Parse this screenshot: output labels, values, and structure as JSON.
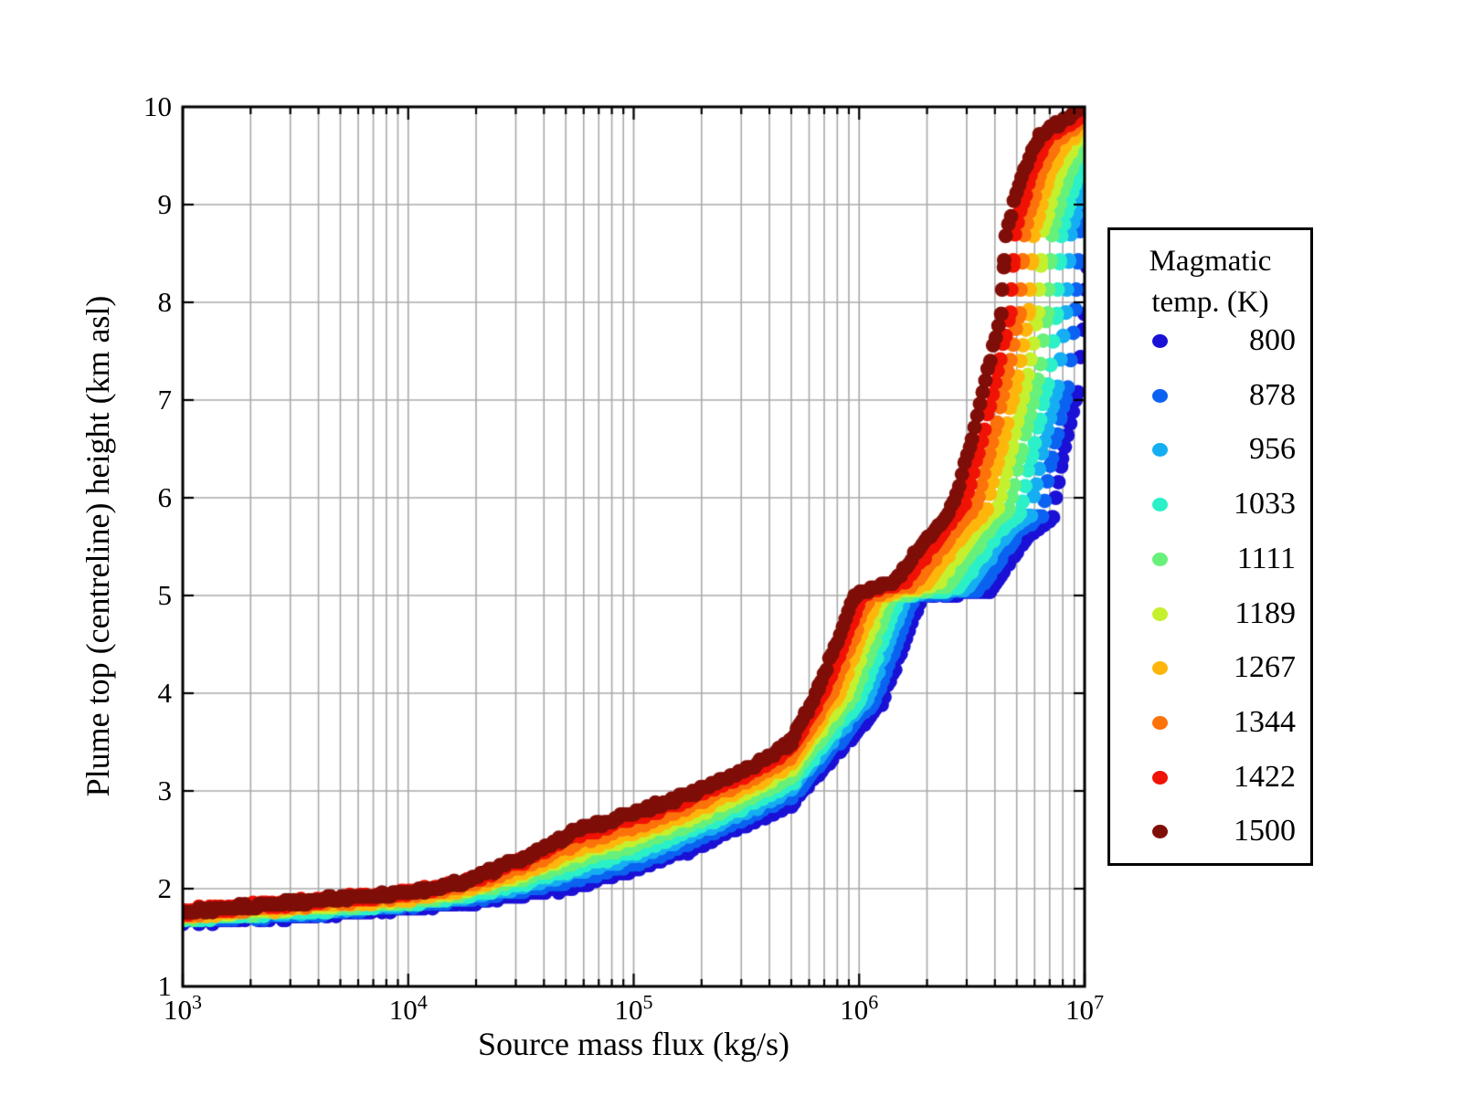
{
  "figure": {
    "background": "#ffffff",
    "frame_color": "#000000"
  },
  "chart_data": {
    "type": "scatter",
    "title": "",
    "xlabel": "Source mass flux (kg/s)",
    "ylabel": "Plume top (centreline) height (km asl)",
    "x_scale": "log",
    "x_range_log10": [
      3,
      7
    ],
    "ylim": [
      1,
      10
    ],
    "x_tick_base": "10",
    "x_tick_exponents": [
      3,
      4,
      5,
      6,
      7
    ],
    "y_ticks": [
      1,
      2,
      3,
      4,
      5,
      6,
      7,
      8,
      9,
      10
    ],
    "grid": {
      "color": "#aaaaaa",
      "minor_vertical": true,
      "major_horizontal": true
    },
    "marker_radius_px": 8,
    "legend": {
      "title_lines": [
        "Magmatic",
        "temp. (K)"
      ],
      "position": "right"
    },
    "series": [
      {
        "name": "800",
        "temp": 800,
        "color": "#1a10d6",
        "points": [
          [
            3.0,
            1.66
          ],
          [
            3.5,
            1.72
          ],
          [
            4.0,
            1.8
          ],
          [
            4.25,
            1.86
          ],
          [
            4.5,
            1.93
          ],
          [
            4.75,
            2.03
          ],
          [
            5.0,
            2.19
          ],
          [
            5.25,
            2.4
          ],
          [
            5.5,
            2.66
          ],
          [
            5.7,
            2.87
          ],
          [
            6.1,
            3.9
          ],
          [
            6.28,
            5.0
          ],
          [
            6.58,
            5.05
          ],
          [
            6.76,
            5.65
          ],
          [
            6.86,
            5.8
          ],
          [
            6.9,
            6.4
          ],
          [
            6.97,
            7.1
          ],
          [
            7.0,
            7.9
          ],
          [
            7.02,
            8.7
          ],
          [
            7.08,
            9.2
          ],
          [
            7.15,
            9.55
          ],
          [
            7.3,
            9.9
          ]
        ],
        "gap_points": [
          [
            7.004,
            8.13
          ],
          [
            7.013,
            8.43
          ]
        ]
      },
      {
        "name": "878",
        "temp": 878,
        "color": "#0b62f0",
        "points": [
          [
            3.0,
            1.671
          ],
          [
            3.5,
            1.736
          ],
          [
            4.0,
            1.818
          ],
          [
            4.25,
            1.883
          ],
          [
            4.5,
            1.971
          ],
          [
            4.75,
            2.093
          ],
          [
            5.0,
            2.254
          ],
          [
            5.25,
            2.463
          ],
          [
            5.5,
            2.722
          ],
          [
            5.7,
            2.94
          ],
          [
            6.069,
            3.917
          ],
          [
            6.247,
            5.0
          ],
          [
            6.533,
            5.061
          ],
          [
            6.716,
            5.661
          ],
          [
            6.811,
            5.817
          ],
          [
            6.856,
            6.422
          ],
          [
            6.926,
            7.122
          ],
          [
            6.959,
            7.9
          ],
          [
            6.979,
            8.7
          ],
          [
            7.04,
            9.211
          ],
          [
            7.111,
            9.567
          ],
          [
            7.267,
            9.911
          ]
        ],
        "gap_points": [
          [
            6.963,
            8.13
          ],
          [
            6.972,
            8.43
          ]
        ]
      },
      {
        "name": "956",
        "temp": 956,
        "color": "#16aef2",
        "points": [
          [
            3.0,
            1.682
          ],
          [
            3.5,
            1.751
          ],
          [
            4.0,
            1.836
          ],
          [
            4.25,
            1.907
          ],
          [
            4.5,
            2.012
          ],
          [
            4.75,
            2.157
          ],
          [
            5.0,
            2.319
          ],
          [
            5.25,
            2.527
          ],
          [
            5.5,
            2.784
          ],
          [
            5.7,
            3.01
          ],
          [
            6.038,
            3.933
          ],
          [
            6.213,
            5.0
          ],
          [
            6.487,
            5.072
          ],
          [
            6.671,
            5.672
          ],
          [
            6.762,
            5.833
          ],
          [
            6.811,
            6.444
          ],
          [
            6.881,
            7.144
          ],
          [
            6.918,
            7.9
          ],
          [
            6.938,
            8.7
          ],
          [
            7.0,
            9.222
          ],
          [
            7.072,
            9.583
          ],
          [
            7.233,
            9.922
          ]
        ],
        "gap_points": [
          [
            6.922,
            8.13
          ],
          [
            6.931,
            8.43
          ]
        ]
      },
      {
        "name": "1033",
        "temp": 1033,
        "color": "#2bf0c8",
        "points": [
          [
            3.0,
            1.693
          ],
          [
            3.5,
            1.767
          ],
          [
            4.0,
            1.853
          ],
          [
            4.25,
            1.93
          ],
          [
            4.5,
            2.053
          ],
          [
            4.75,
            2.22
          ],
          [
            5.0,
            2.383
          ],
          [
            5.25,
            2.59
          ],
          [
            5.5,
            2.847
          ],
          [
            5.7,
            3.08
          ],
          [
            6.007,
            3.95
          ],
          [
            6.18,
            5.0
          ],
          [
            6.44,
            5.083
          ],
          [
            6.627,
            5.683
          ],
          [
            6.713,
            5.85
          ],
          [
            6.767,
            6.467
          ],
          [
            6.837,
            7.167
          ],
          [
            6.877,
            7.9
          ],
          [
            6.897,
            8.7
          ],
          [
            6.96,
            9.233
          ],
          [
            7.033,
            9.6
          ],
          [
            7.2,
            9.933
          ]
        ],
        "gap_points": [
          [
            6.881,
            8.13
          ],
          [
            6.89,
            8.43
          ]
        ]
      },
      {
        "name": "1111",
        "temp": 1111,
        "color": "#67f07a",
        "points": [
          [
            3.0,
            1.704
          ],
          [
            3.5,
            1.782
          ],
          [
            4.0,
            1.871
          ],
          [
            4.25,
            1.953
          ],
          [
            4.5,
            2.094
          ],
          [
            4.75,
            2.283
          ],
          [
            5.0,
            2.448
          ],
          [
            5.25,
            2.653
          ],
          [
            5.5,
            2.909
          ],
          [
            5.7,
            3.15
          ],
          [
            5.976,
            3.967
          ],
          [
            6.147,
            5.0
          ],
          [
            6.393,
            5.094
          ],
          [
            6.582,
            5.694
          ],
          [
            6.664,
            5.867
          ],
          [
            6.722,
            6.489
          ],
          [
            6.792,
            7.189
          ],
          [
            6.836,
            7.9
          ],
          [
            6.856,
            8.7
          ],
          [
            6.92,
            9.244
          ],
          [
            6.994,
            9.617
          ],
          [
            7.167,
            9.944
          ]
        ],
        "gap_points": [
          [
            6.84,
            8.13
          ],
          [
            6.849,
            8.43
          ]
        ]
      },
      {
        "name": "1189",
        "temp": 1189,
        "color": "#c5f02e",
        "points": [
          [
            3.0,
            1.716
          ],
          [
            3.5,
            1.798
          ],
          [
            4.0,
            1.889
          ],
          [
            4.25,
            1.977
          ],
          [
            4.5,
            2.136
          ],
          [
            4.75,
            2.347
          ],
          [
            5.0,
            2.512
          ],
          [
            5.25,
            2.717
          ],
          [
            5.5,
            2.971
          ],
          [
            5.7,
            3.22
          ],
          [
            5.944,
            3.983
          ],
          [
            6.113,
            5.0
          ],
          [
            6.347,
            5.106
          ],
          [
            6.538,
            5.706
          ],
          [
            6.616,
            5.883
          ],
          [
            6.678,
            6.511
          ],
          [
            6.748,
            7.211
          ],
          [
            6.794,
            7.9
          ],
          [
            6.814,
            8.7
          ],
          [
            6.88,
            9.256
          ],
          [
            6.956,
            9.633
          ],
          [
            7.133,
            9.956
          ]
        ],
        "gap_points": [
          [
            6.798,
            8.13
          ],
          [
            6.807,
            8.43
          ]
        ]
      },
      {
        "name": "1267",
        "temp": 1267,
        "color": "#ffb60c",
        "points": [
          [
            3.0,
            1.727
          ],
          [
            3.5,
            1.813
          ],
          [
            4.0,
            1.907
          ],
          [
            4.25,
            2.0
          ],
          [
            4.5,
            2.177
          ],
          [
            4.75,
            2.41
          ],
          [
            5.0,
            2.577
          ],
          [
            5.25,
            2.78
          ],
          [
            5.5,
            3.033
          ],
          [
            5.7,
            3.29
          ],
          [
            5.913,
            4.0
          ],
          [
            6.08,
            5.0
          ],
          [
            6.3,
            5.117
          ],
          [
            6.493,
            5.717
          ],
          [
            6.567,
            5.9
          ],
          [
            6.633,
            6.533
          ],
          [
            6.703,
            7.233
          ],
          [
            6.753,
            7.9
          ],
          [
            6.773,
            8.7
          ],
          [
            6.84,
            9.267
          ],
          [
            6.917,
            9.65
          ],
          [
            7.1,
            9.967
          ]
        ],
        "gap_points": [
          [
            6.757,
            8.13
          ],
          [
            6.766,
            8.43
          ]
        ]
      },
      {
        "name": "1344",
        "temp": 1344,
        "color": "#fc720b",
        "points": [
          [
            3.0,
            1.738
          ],
          [
            3.5,
            1.829
          ],
          [
            4.0,
            1.924
          ],
          [
            4.25,
            2.023
          ],
          [
            4.5,
            2.218
          ],
          [
            4.75,
            2.473
          ],
          [
            5.0,
            2.641
          ],
          [
            5.25,
            2.843
          ],
          [
            5.5,
            3.096
          ],
          [
            5.7,
            3.36
          ],
          [
            5.882,
            4.017
          ],
          [
            6.047,
            5.0
          ],
          [
            6.253,
            5.128
          ],
          [
            6.449,
            5.728
          ],
          [
            6.518,
            5.917
          ],
          [
            6.589,
            6.556
          ],
          [
            6.659,
            7.256
          ],
          [
            6.712,
            7.9
          ],
          [
            6.732,
            8.7
          ],
          [
            6.8,
            9.278
          ],
          [
            6.878,
            9.667
          ],
          [
            7.067,
            9.978
          ]
        ],
        "gap_points": [
          [
            6.716,
            8.13
          ],
          [
            6.725,
            8.43
          ]
        ]
      },
      {
        "name": "1422",
        "temp": 1422,
        "color": "#f01205",
        "points": [
          [
            3.0,
            1.749
          ],
          [
            3.5,
            1.844
          ],
          [
            4.0,
            1.942
          ],
          [
            4.25,
            2.047
          ],
          [
            4.5,
            2.259
          ],
          [
            4.75,
            2.537
          ],
          [
            5.0,
            2.706
          ],
          [
            5.25,
            2.907
          ],
          [
            5.5,
            3.158
          ],
          [
            5.7,
            3.43
          ],
          [
            5.851,
            4.033
          ],
          [
            6.013,
            5.0
          ],
          [
            6.207,
            5.139
          ],
          [
            6.404,
            5.739
          ],
          [
            6.469,
            5.933
          ],
          [
            6.544,
            6.578
          ],
          [
            6.614,
            7.278
          ],
          [
            6.671,
            7.9
          ],
          [
            6.691,
            8.7
          ],
          [
            6.76,
            9.289
          ],
          [
            6.839,
            9.683
          ],
          [
            7.033,
            9.989
          ]
        ],
        "gap_points": [
          [
            6.675,
            8.13
          ],
          [
            6.684,
            8.43
          ]
        ]
      },
      {
        "name": "1500",
        "temp": 1500,
        "color": "#7f0e08",
        "points": [
          [
            3.0,
            1.76
          ],
          [
            3.5,
            1.86
          ],
          [
            4.0,
            1.96
          ],
          [
            4.25,
            2.07
          ],
          [
            4.5,
            2.3
          ],
          [
            4.75,
            2.6
          ],
          [
            5.0,
            2.77
          ],
          [
            5.25,
            2.97
          ],
          [
            5.5,
            3.22
          ],
          [
            5.7,
            3.5
          ],
          [
            5.82,
            4.05
          ],
          [
            5.98,
            5.0
          ],
          [
            6.16,
            5.15
          ],
          [
            6.36,
            5.75
          ],
          [
            6.42,
            5.95
          ],
          [
            6.5,
            6.6
          ],
          [
            6.57,
            7.3
          ],
          [
            6.63,
            7.9
          ],
          [
            6.65,
            8.7
          ],
          [
            6.72,
            9.3
          ],
          [
            6.8,
            9.7
          ],
          [
            7.0,
            10.0
          ]
        ],
        "gap_points": [
          [
            6.634,
            8.13
          ],
          [
            6.643,
            8.43
          ]
        ]
      }
    ]
  }
}
